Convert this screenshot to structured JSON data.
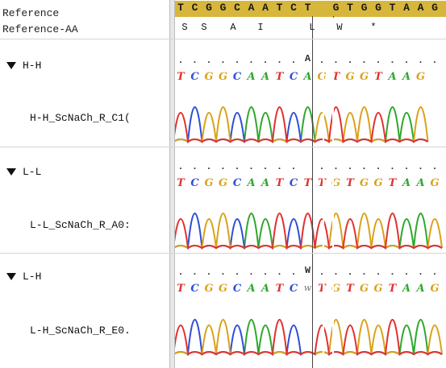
{
  "labels": {
    "reference": "Reference",
    "reference_aa": "Reference-AA"
  },
  "reference_sequence": [
    "T",
    "C",
    "G",
    "G",
    "C",
    "A",
    "A",
    "T",
    "C",
    "T",
    "",
    "G",
    "T",
    "G",
    "G",
    "T",
    "A",
    "A",
    "G"
  ],
  "reference_aa": [
    "S",
    "S",
    "A",
    "I",
    "",
    "L",
    "W",
    "*"
  ],
  "groups": [
    {
      "name": "H-H",
      "trace": "H-H_ScNaCh_R_C1(",
      "marker": "A",
      "bases": [
        "T",
        "C",
        "G",
        "G",
        "C",
        "A",
        "A",
        "T",
        "C",
        "A",
        "G",
        "T",
        "G",
        "G",
        "T",
        "A",
        "A",
        "G"
      ],
      "trace_mid_base": ""
    },
    {
      "name": "L-L",
      "trace": "L-L_ScNaCh_R_A0:",
      "marker": "",
      "bases": [
        "T",
        "C",
        "G",
        "G",
        "C",
        "A",
        "A",
        "T",
        "C",
        "T",
        "T",
        "G",
        "T",
        "G",
        "G",
        "T",
        "A",
        "A",
        "G"
      ],
      "trace_mid_base": ""
    },
    {
      "name": "L-H",
      "trace": "L-H_ScNaCh_R_E0.",
      "marker": "W",
      "bases": [
        "T",
        "C",
        "G",
        "G",
        "C",
        "A",
        "A",
        "T",
        "C",
        "w",
        "T",
        "G",
        "T",
        "G",
        "G",
        "T",
        "A",
        "A",
        "G"
      ],
      "trace_mid_base": "w"
    }
  ],
  "colors": {
    "reference_bar": "#d7b63c",
    "A": "#2ea82e",
    "C": "#2f4fd8",
    "G": "#d9a21a",
    "T": "#e23131",
    "W": "#777777"
  }
}
